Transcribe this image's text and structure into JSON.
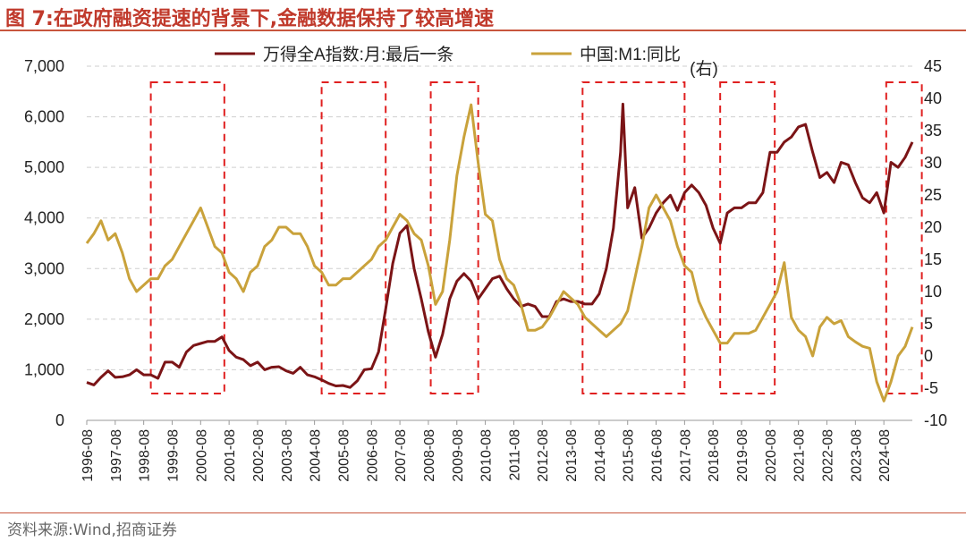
{
  "header": {
    "title": "图 7:在政府融资提速的背景下,金融数据保持了较高增速"
  },
  "footer": {
    "source": "资料来源:Wind,招商证券"
  },
  "chart_data": {
    "type": "line",
    "x_tick_labels": [
      "1996-08",
      "1997-08",
      "1998-08",
      "1999-08",
      "2000-08",
      "2001-08",
      "2002-08",
      "2003-08",
      "2004-08",
      "2005-08",
      "2006-08",
      "2007-08",
      "2008-08",
      "2009-08",
      "2010-08",
      "2011-08",
      "2012-08",
      "2013-08",
      "2014-08",
      "2015-08",
      "2016-08",
      "2017-08",
      "2018-08",
      "2019-08",
      "2020-08",
      "2021-08",
      "2022-08",
      "2023-08",
      "2024-08"
    ],
    "x_range": [
      "1996-08",
      "2025-08"
    ],
    "left_axis": {
      "range": [
        0,
        7000
      ],
      "ticks": [
        0,
        1000,
        2000,
        3000,
        4000,
        5000,
        6000,
        7000
      ],
      "tick_labels": [
        "0",
        "1,000",
        "2,000",
        "3,000",
        "4,000",
        "5,000",
        "6,000",
        "7,000"
      ]
    },
    "right_axis": {
      "label": "(右)",
      "range": [
        -10,
        45
      ],
      "ticks": [
        -10,
        -5,
        0,
        5,
        10,
        15,
        20,
        25,
        30,
        35,
        40,
        45
      ],
      "tick_labels": [
        "-10",
        "-5",
        "0",
        "5",
        "10",
        "15",
        "20",
        "25",
        "30",
        "35",
        "40",
        "45"
      ]
    },
    "grid": "horizontal dashed",
    "legend_position": "top",
    "series": [
      {
        "name": "万得全A指数:月:最后一条",
        "axis": "left",
        "color": "#7b1416",
        "points": [
          [
            "1996-08",
            750
          ],
          [
            "1996-11",
            700
          ],
          [
            "1997-02",
            850
          ],
          [
            "1997-05",
            980
          ],
          [
            "1997-08",
            850
          ],
          [
            "1997-11",
            860
          ],
          [
            "1998-02",
            900
          ],
          [
            "1998-05",
            1000
          ],
          [
            "1998-08",
            900
          ],
          [
            "1998-11",
            900
          ],
          [
            "1999-02",
            830
          ],
          [
            "1999-05",
            1150
          ],
          [
            "1999-08",
            1150
          ],
          [
            "1999-11",
            1050
          ],
          [
            "2000-02",
            1350
          ],
          [
            "2000-05",
            1480
          ],
          [
            "2000-08",
            1520
          ],
          [
            "2000-11",
            1560
          ],
          [
            "2001-02",
            1560
          ],
          [
            "2001-05",
            1650
          ],
          [
            "2001-08",
            1380
          ],
          [
            "2001-11",
            1250
          ],
          [
            "2002-02",
            1200
          ],
          [
            "2002-05",
            1080
          ],
          [
            "2002-08",
            1150
          ],
          [
            "2002-11",
            1000
          ],
          [
            "2003-02",
            1050
          ],
          [
            "2003-05",
            1060
          ],
          [
            "2003-08",
            980
          ],
          [
            "2003-11",
            930
          ],
          [
            "2004-02",
            1050
          ],
          [
            "2004-05",
            900
          ],
          [
            "2004-08",
            860
          ],
          [
            "2004-11",
            800
          ],
          [
            "2005-02",
            730
          ],
          [
            "2005-05",
            680
          ],
          [
            "2005-08",
            690
          ],
          [
            "2005-11",
            650
          ],
          [
            "2006-02",
            780
          ],
          [
            "2006-05",
            1000
          ],
          [
            "2006-08",
            1020
          ],
          [
            "2006-11",
            1350
          ],
          [
            "2007-02",
            2200
          ],
          [
            "2007-05",
            3100
          ],
          [
            "2007-08",
            3700
          ],
          [
            "2007-11",
            3850
          ],
          [
            "2008-02",
            3000
          ],
          [
            "2008-05",
            2400
          ],
          [
            "2008-08",
            1750
          ],
          [
            "2008-11",
            1250
          ],
          [
            "2009-02",
            1700
          ],
          [
            "2009-05",
            2400
          ],
          [
            "2009-08",
            2750
          ],
          [
            "2009-11",
            2900
          ],
          [
            "2010-02",
            2750
          ],
          [
            "2010-05",
            2400
          ],
          [
            "2010-08",
            2600
          ],
          [
            "2010-11",
            2800
          ],
          [
            "2011-02",
            2850
          ],
          [
            "2011-05",
            2600
          ],
          [
            "2011-08",
            2400
          ],
          [
            "2011-11",
            2250
          ],
          [
            "2012-02",
            2300
          ],
          [
            "2012-05",
            2250
          ],
          [
            "2012-08",
            2050
          ],
          [
            "2012-11",
            2050
          ],
          [
            "2013-02",
            2350
          ],
          [
            "2013-05",
            2400
          ],
          [
            "2013-08",
            2350
          ],
          [
            "2013-11",
            2350
          ],
          [
            "2014-02",
            2300
          ],
          [
            "2014-05",
            2300
          ],
          [
            "2014-08",
            2500
          ],
          [
            "2014-11",
            3000
          ],
          [
            "2015-02",
            3800
          ],
          [
            "2015-05",
            5300
          ],
          [
            "2015-06",
            6250
          ],
          [
            "2015-08",
            4200
          ],
          [
            "2015-11",
            4600
          ],
          [
            "2016-02",
            3600
          ],
          [
            "2016-05",
            3800
          ],
          [
            "2016-08",
            4100
          ],
          [
            "2016-11",
            4300
          ],
          [
            "2017-02",
            4450
          ],
          [
            "2017-05",
            4150
          ],
          [
            "2017-08",
            4500
          ],
          [
            "2017-11",
            4650
          ],
          [
            "2018-02",
            4500
          ],
          [
            "2018-05",
            4250
          ],
          [
            "2018-08",
            3800
          ],
          [
            "2018-11",
            3500
          ],
          [
            "2019-02",
            4100
          ],
          [
            "2019-05",
            4200
          ],
          [
            "2019-08",
            4200
          ],
          [
            "2019-11",
            4300
          ],
          [
            "2020-02",
            4300
          ],
          [
            "2020-05",
            4500
          ],
          [
            "2020-08",
            5300
          ],
          [
            "2020-11",
            5300
          ],
          [
            "2021-02",
            5500
          ],
          [
            "2021-05",
            5600
          ],
          [
            "2021-08",
            5800
          ],
          [
            "2021-11",
            5850
          ],
          [
            "2022-02",
            5300
          ],
          [
            "2022-05",
            4800
          ],
          [
            "2022-08",
            4900
          ],
          [
            "2022-11",
            4700
          ],
          [
            "2023-02",
            5100
          ],
          [
            "2023-05",
            5050
          ],
          [
            "2023-08",
            4700
          ],
          [
            "2023-11",
            4400
          ],
          [
            "2024-02",
            4300
          ],
          [
            "2024-05",
            4500
          ],
          [
            "2024-08",
            4100
          ],
          [
            "2024-11",
            5100
          ],
          [
            "2025-02",
            5000
          ],
          [
            "2025-05",
            5200
          ],
          [
            "2025-08",
            5500
          ]
        ]
      },
      {
        "name": "中国:M1:同比",
        "axis": "right",
        "color": "#c9a23b",
        "points": [
          [
            "1996-08",
            17.5
          ],
          [
            "1996-11",
            19
          ],
          [
            "1997-02",
            21
          ],
          [
            "1997-05",
            18
          ],
          [
            "1997-08",
            19
          ],
          [
            "1997-11",
            16
          ],
          [
            "1998-02",
            12
          ],
          [
            "1998-05",
            10
          ],
          [
            "1998-08",
            11
          ],
          [
            "1998-11",
            12
          ],
          [
            "1999-02",
            12
          ],
          [
            "1999-05",
            14
          ],
          [
            "1999-08",
            15
          ],
          [
            "1999-11",
            17
          ],
          [
            "2000-02",
            19
          ],
          [
            "2000-05",
            21
          ],
          [
            "2000-08",
            23
          ],
          [
            "2000-11",
            20
          ],
          [
            "2001-02",
            17
          ],
          [
            "2001-05",
            16
          ],
          [
            "2001-08",
            13
          ],
          [
            "2001-11",
            12
          ],
          [
            "2002-02",
            10
          ],
          [
            "2002-05",
            13
          ],
          [
            "2002-08",
            14
          ],
          [
            "2002-11",
            17
          ],
          [
            "2003-02",
            18
          ],
          [
            "2003-05",
            20
          ],
          [
            "2003-08",
            20
          ],
          [
            "2003-11",
            19
          ],
          [
            "2004-02",
            19
          ],
          [
            "2004-05",
            17
          ],
          [
            "2004-08",
            14
          ],
          [
            "2004-11",
            13
          ],
          [
            "2005-02",
            11
          ],
          [
            "2005-05",
            11
          ],
          [
            "2005-08",
            12
          ],
          [
            "2005-11",
            12
          ],
          [
            "2006-02",
            13
          ],
          [
            "2006-05",
            14
          ],
          [
            "2006-08",
            15
          ],
          [
            "2006-11",
            17
          ],
          [
            "2007-02",
            18
          ],
          [
            "2007-05",
            20
          ],
          [
            "2007-08",
            22
          ],
          [
            "2007-11",
            21
          ],
          [
            "2008-02",
            19
          ],
          [
            "2008-05",
            18
          ],
          [
            "2008-08",
            14
          ],
          [
            "2008-11",
            8
          ],
          [
            "2009-02",
            10
          ],
          [
            "2009-05",
            18
          ],
          [
            "2009-08",
            28
          ],
          [
            "2009-11",
            34
          ],
          [
            "2010-02",
            39
          ],
          [
            "2010-05",
            30
          ],
          [
            "2010-08",
            22
          ],
          [
            "2010-11",
            21
          ],
          [
            "2011-02",
            15
          ],
          [
            "2011-05",
            12
          ],
          [
            "2011-08",
            11
          ],
          [
            "2011-11",
            8
          ],
          [
            "2012-02",
            4
          ],
          [
            "2012-05",
            4
          ],
          [
            "2012-08",
            4.5
          ],
          [
            "2012-11",
            6
          ],
          [
            "2013-02",
            8
          ],
          [
            "2013-05",
            10
          ],
          [
            "2013-08",
            9
          ],
          [
            "2013-11",
            8
          ],
          [
            "2014-02",
            6
          ],
          [
            "2014-05",
            5
          ],
          [
            "2014-08",
            4
          ],
          [
            "2014-11",
            3
          ],
          [
            "2015-02",
            4
          ],
          [
            "2015-05",
            5
          ],
          [
            "2015-08",
            7
          ],
          [
            "2015-11",
            12
          ],
          [
            "2016-02",
            17
          ],
          [
            "2016-05",
            23
          ],
          [
            "2016-08",
            25
          ],
          [
            "2016-11",
            23
          ],
          [
            "2017-02",
            21
          ],
          [
            "2017-05",
            17
          ],
          [
            "2017-08",
            14
          ],
          [
            "2017-11",
            13
          ],
          [
            "2018-02",
            8.5
          ],
          [
            "2018-05",
            6
          ],
          [
            "2018-08",
            4
          ],
          [
            "2018-11",
            2
          ],
          [
            "2019-02",
            2
          ],
          [
            "2019-05",
            3.5
          ],
          [
            "2019-08",
            3.5
          ],
          [
            "2019-11",
            3.5
          ],
          [
            "2020-02",
            4
          ],
          [
            "2020-05",
            6
          ],
          [
            "2020-08",
            8
          ],
          [
            "2020-11",
            10
          ],
          [
            "2021-02",
            14.5
          ],
          [
            "2021-05",
            6
          ],
          [
            "2021-08",
            4
          ],
          [
            "2021-11",
            3
          ],
          [
            "2022-02",
            0
          ],
          [
            "2022-05",
            4.5
          ],
          [
            "2022-08",
            6
          ],
          [
            "2022-11",
            5
          ],
          [
            "2023-02",
            5.5
          ],
          [
            "2023-05",
            3
          ],
          [
            "2023-08",
            2.2
          ],
          [
            "2023-11",
            1.5
          ],
          [
            "2024-02",
            1.2
          ],
          [
            "2024-05",
            -4
          ],
          [
            "2024-08",
            -7
          ],
          [
            "2024-11",
            -4
          ],
          [
            "2025-02",
            0
          ],
          [
            "2025-05",
            1.5
          ],
          [
            "2025-08",
            4.5
          ]
        ]
      }
    ],
    "highlight_periods": [
      [
        "1998-11",
        "2001-06"
      ],
      [
        "2004-11",
        "2007-02"
      ],
      [
        "2008-09",
        "2010-05"
      ],
      [
        "2014-01",
        "2017-08"
      ],
      [
        "2018-11",
        "2020-10"
      ],
      [
        "2024-09",
        "2025-12"
      ]
    ]
  }
}
